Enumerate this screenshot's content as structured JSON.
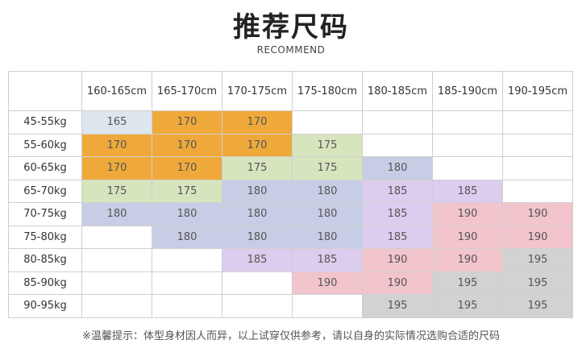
{
  "title": "推荐尺码",
  "subtitle": "RECOMMEND",
  "columns": [
    "160-165cm",
    "165-170cm",
    "170-175cm",
    "175-180cm",
    "180-185cm",
    "185-190cm",
    "190-195cm"
  ],
  "rows": [
    {
      "label": "45-55kg",
      "cells": [
        "165",
        "170",
        "170",
        "",
        "",
        "",
        ""
      ]
    },
    {
      "label": "55-60kg",
      "cells": [
        "170",
        "170",
        "170",
        "175",
        "",
        "",
        ""
      ]
    },
    {
      "label": "60-65kg",
      "cells": [
        "170",
        "170",
        "175",
        "175",
        "180",
        "",
        ""
      ]
    },
    {
      "label": "65-70kg",
      "cells": [
        "175",
        "175",
        "180",
        "180",
        "185",
        "185",
        ""
      ]
    },
    {
      "label": "70-75kg",
      "cells": [
        "180",
        "180",
        "180",
        "180",
        "185",
        "190",
        "190"
      ]
    },
    {
      "label": "75-80kg",
      "cells": [
        "",
        "180",
        "180",
        "180",
        "185",
        "190",
        "190"
      ]
    },
    {
      "label": "80-85kg",
      "cells": [
        "",
        "",
        "185",
        "185",
        "190",
        "190",
        "195"
      ]
    },
    {
      "label": "85-90kg",
      "cells": [
        "",
        "",
        "",
        "190",
        "190",
        "195",
        "195"
      ]
    },
    {
      "label": "90-95kg",
      "cells": [
        "",
        "",
        "",
        "",
        "195",
        "195",
        "195"
      ]
    }
  ],
  "size_colors": {
    "165": "#dce6ec",
    "170": "#efa93a",
    "175": "#d7e5be",
    "180": "#c8cde6",
    "185": "#dccdee",
    "190": "#f2c4cc",
    "195": "#d2d2d2"
  },
  "footnote": "※温馨提示：体型身材因人而异，以上试穿仅供参考，请以自身的实际情况选购合适的尺码"
}
